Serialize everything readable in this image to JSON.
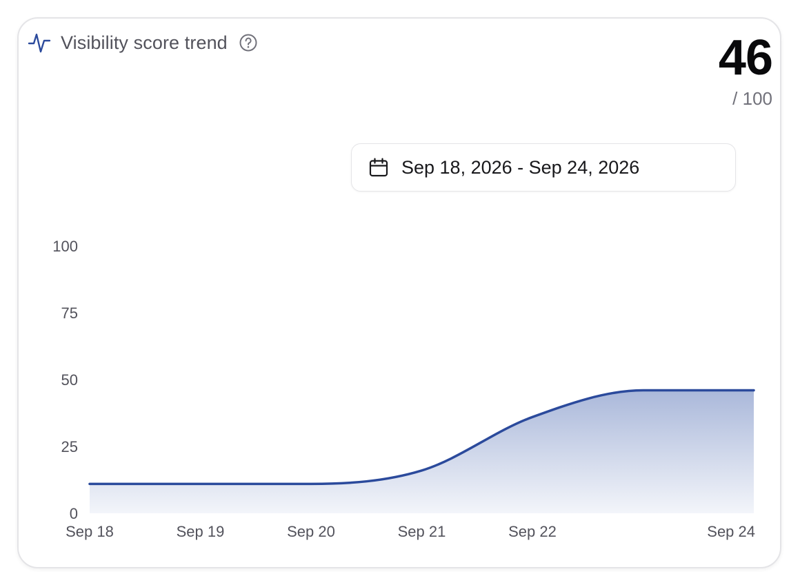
{
  "header": {
    "title": "Visibility score trend",
    "trend_icon": "activity-pulse-icon",
    "help_icon": "question-circle-icon"
  },
  "score": {
    "value": "46",
    "max_label": "/ 100"
  },
  "date_range": {
    "label": "Sep 18, 2026 - Sep 24, 2026",
    "icon": "calendar-icon"
  },
  "colors": {
    "line": "#2b4a9c",
    "area_top": "#aab8da",
    "area_bottom": "#f3f5fa"
  },
  "chart_data": {
    "type": "area",
    "x": [
      "2026-09-18",
      "2026-09-19",
      "2026-09-20",
      "2026-09-21",
      "2026-09-22",
      "2026-09-23",
      "2026-09-24"
    ],
    "x_tick_labels": [
      "Sep 18",
      "Sep 19",
      "Sep 20",
      "Sep 21",
      "Sep 22",
      "",
      "Sep 24"
    ],
    "series": [
      {
        "values": [
          11,
          11,
          11,
          16,
          36,
          46,
          46
        ]
      }
    ],
    "y_ticks": [
      0,
      25,
      50,
      75,
      100
    ],
    "ylim": [
      0,
      100
    ],
    "grid": false,
    "title": "",
    "xlabel": "",
    "ylabel": ""
  }
}
